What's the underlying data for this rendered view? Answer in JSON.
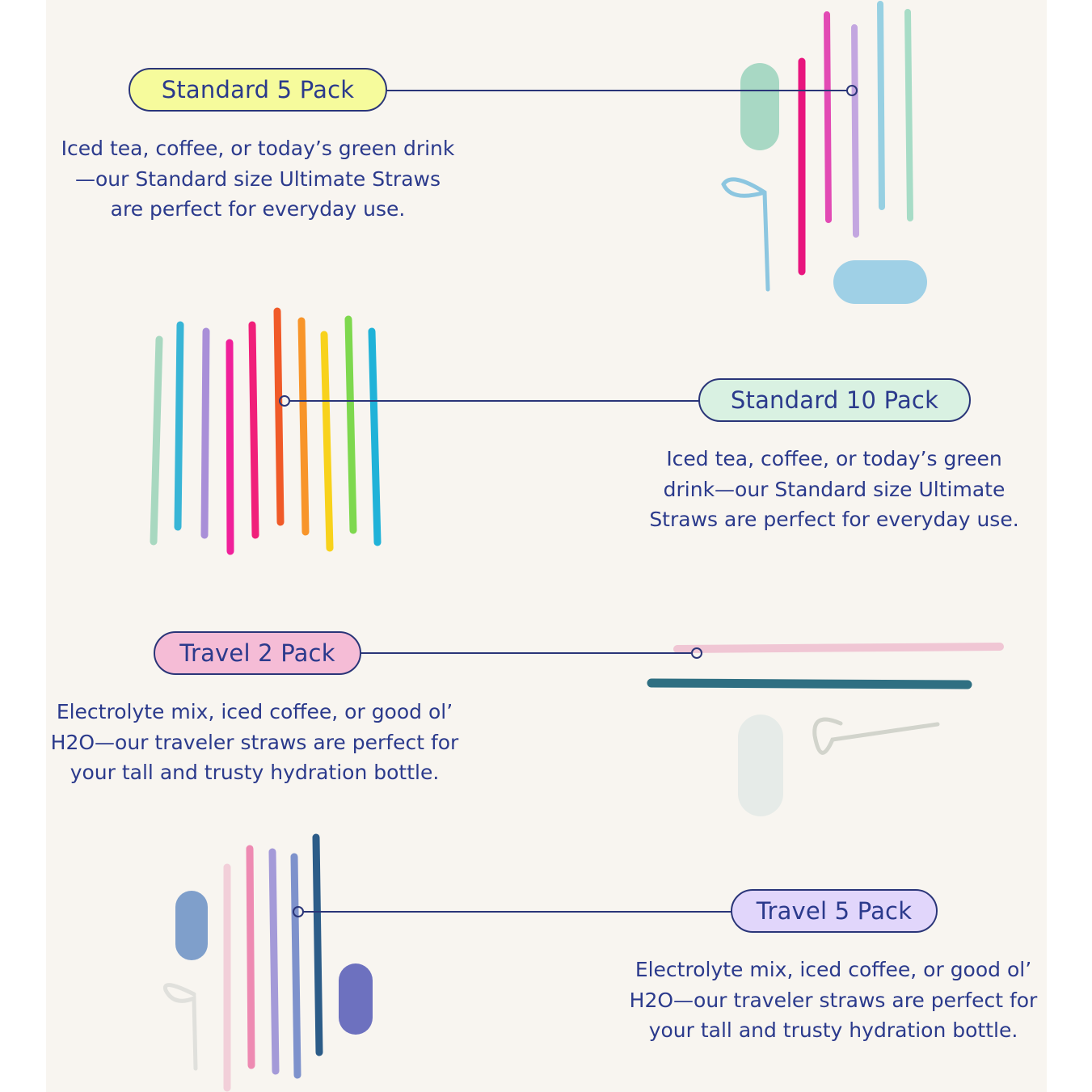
{
  "sections": [
    {
      "title": "Standard 5 Pack",
      "description": "Iced tea, coffee, or today’s green drink\n—our Standard size Ultimate Straws\nare perfect for everyday use.",
      "pill_color": "#f6fb9c"
    },
    {
      "title": "Standard 10 Pack",
      "description": "Iced tea, coffee, or today’s green\ndrink—our Standard size Ultimate\nStraws are perfect for everyday use.",
      "pill_color": "#d9f1e2"
    },
    {
      "title": "Travel 2 Pack",
      "description": "Electrolyte mix, iced coffee, or good ol’\nH2O—our traveler straws are perfect for\nyour tall and trusty hydration bottle.",
      "pill_color": "#f5bcd6"
    },
    {
      "title": "Travel 5 Pack",
      "description": "Electrolyte mix, iced coffee, or good ol’\nH2O—our traveler straws are perfect for\nyour tall and trusty hydration bottle.",
      "pill_color": "#e1d6fb"
    }
  ],
  "colors": {
    "text": "#2b3a8c",
    "line": "#2a3578",
    "background": "#f8f5f0"
  }
}
